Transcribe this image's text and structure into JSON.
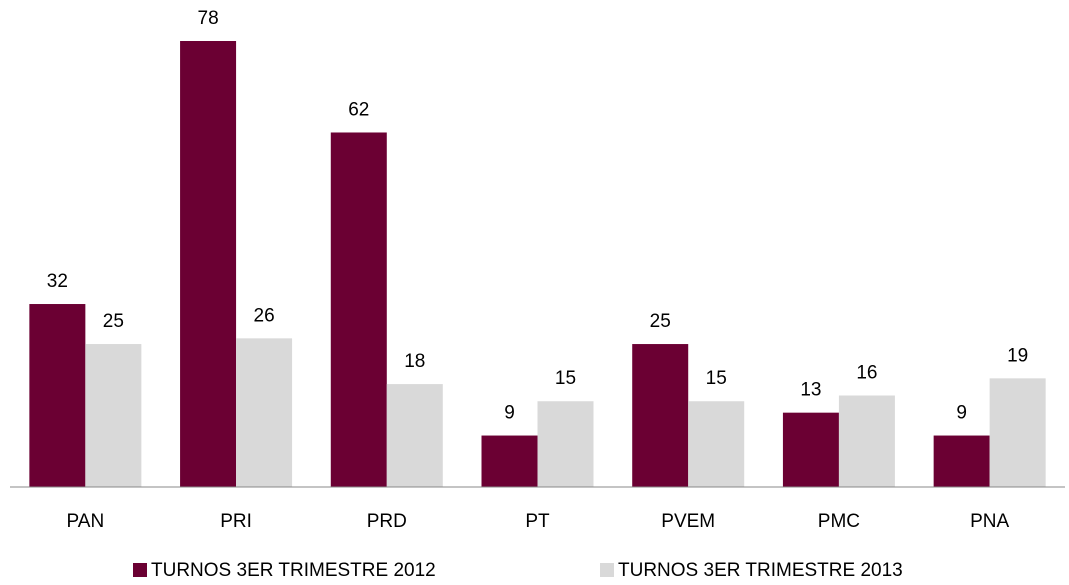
{
  "chart_data": {
    "type": "bar",
    "categories": [
      "PAN",
      "PRI",
      "PRD",
      "PT",
      "PVEM",
      "PMC",
      "PNA"
    ],
    "series": [
      {
        "name": "TURNOS 3ER TRIMESTRE 2012",
        "color": "#6b0033",
        "values": [
          32,
          78,
          62,
          9,
          25,
          13,
          9
        ]
      },
      {
        "name": "TURNOS 3ER TRIMESTRE 2013",
        "color": "#d9d9d9",
        "values": [
          25,
          26,
          18,
          15,
          15,
          16,
          19
        ]
      }
    ]
  }
}
